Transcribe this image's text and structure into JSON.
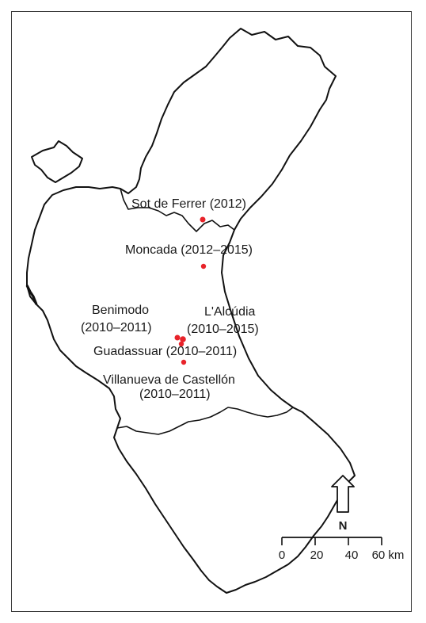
{
  "map": {
    "region_fill": "#ffffff",
    "outline_color": "#111111",
    "site_color": "#e8232a",
    "sites": [
      {
        "name": "Sot de Ferrer",
        "years": "(2012)",
        "label": "Sot de Ferrer (2012)"
      },
      {
        "name": "Moncada",
        "years": "(2012–2015)",
        "label": "Moncada (2012–2015)"
      },
      {
        "name": "Benimodo",
        "years": "(2010–2011)",
        "label": "Benimodo"
      },
      {
        "name": "L'Alcúdia",
        "years": "(2010–2015)",
        "label": "L'Alcúdia"
      },
      {
        "name": "Guadassuar",
        "years": "(2010–2011)",
        "label": "Guadassuar (2010–2011)"
      },
      {
        "name": "Villanueva de Castellón",
        "years": "(2010–2011)",
        "label": "Villanueva de Castellón"
      }
    ],
    "north_arrow": {
      "label": "N"
    },
    "scale_bar": {
      "ticks": [
        "0",
        "20",
        "40",
        "60 km"
      ]
    }
  }
}
